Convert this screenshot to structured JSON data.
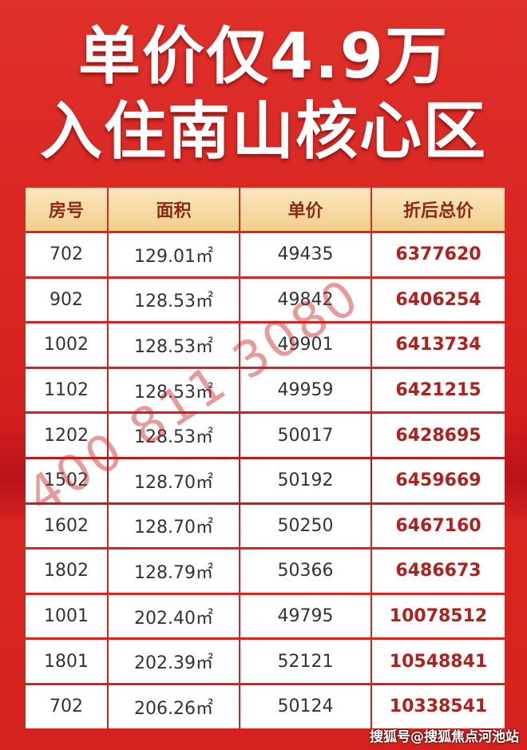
{
  "header": {
    "line1": "单价仅4.9万",
    "line2": "入住南山核心区"
  },
  "table": {
    "columns": [
      "房号",
      "面积",
      "单价",
      "折后总价"
    ],
    "rows": [
      [
        "702",
        "129.01㎡",
        "49435",
        "6377620"
      ],
      [
        "902",
        "128.53㎡",
        "49842",
        "6406254"
      ],
      [
        "1002",
        "128.53㎡",
        "49901",
        "6413734"
      ],
      [
        "1102",
        "128.53㎡",
        "49959",
        "6421215"
      ],
      [
        "1202",
        "128.53㎡",
        "50017",
        "6428695"
      ],
      [
        "1502",
        "128.70㎡",
        "50192",
        "6459669"
      ],
      [
        "1602",
        "128.70㎡",
        "50250",
        "6467160"
      ],
      [
        "1802",
        "128.79㎡",
        "50366",
        "6486673"
      ],
      [
        "1001",
        "202.40㎡",
        "49795",
        "10078512"
      ],
      [
        "1801",
        "202.39㎡",
        "52121",
        "10548841"
      ],
      [
        "702",
        "206.26㎡",
        "50124",
        "10338541"
      ]
    ]
  },
  "watermark": "400 811 3080",
  "footer": "搜狐号@搜狐焦点河池站"
}
